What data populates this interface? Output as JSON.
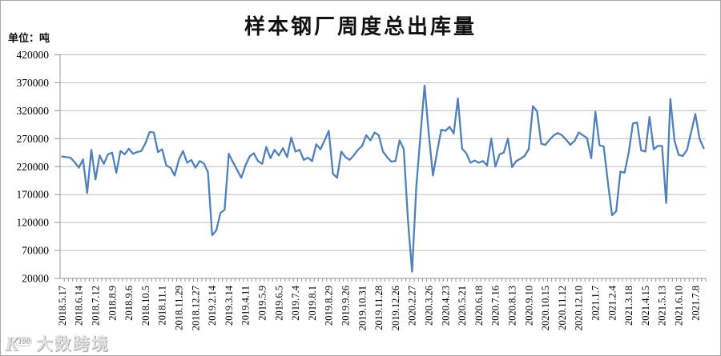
{
  "meta": {
    "title": "样本钢厂周度总出库量",
    "unit_label": "单位：吨"
  },
  "watermark": {
    "logo_main": "K",
    "logo_sup": "100",
    "text": "大数跨境"
  },
  "chart_data": {
    "type": "line",
    "title": "样本钢厂周度总出库量",
    "ylabel": "单位：吨",
    "xlabel": "",
    "grid": true,
    "legend": "none",
    "series_name": "周度总出库量",
    "series_color": "#4F81BD",
    "grid_color": "#bfbfbf",
    "axis_color": "#959595",
    "text_color": "#000000",
    "ylim": [
      20000,
      420000
    ],
    "ytick_step": 50000,
    "ytick_labels": [
      "20000",
      "70000",
      "120000",
      "170000",
      "220000",
      "270000",
      "320000",
      "370000",
      "420000"
    ],
    "label_every": 4,
    "x_tick_labels": [
      "2018.5.17",
      "2018.6.14",
      "2018.7.12",
      "2018.8.9",
      "2018.9.6",
      "2018.10.5",
      "2018.11.1",
      "2018.11.29",
      "2018.12.27",
      "2019.2.14",
      "2019.3.14",
      "2019.4.11",
      "2019.5.9",
      "2019.6.5",
      "2019.7.4",
      "2019.8.1",
      "2019.8.29",
      "2019.9.26",
      "2019.10.31",
      "2019.11.28",
      "2019.12.26",
      "2020.2.27",
      "2020.3.26",
      "2020.4.23",
      "2020.5.21",
      "2020.6.18",
      "2020.7.16",
      "2020.8.13",
      "2020.9.10",
      "2020.10.15",
      "2020.11.12",
      "2020.12.10",
      "2021.1.7",
      "2021.2.4",
      "2021.3.18",
      "2021.4.15",
      "2021.5.13",
      "2021.6.10",
      "2021.7.8"
    ],
    "values": [
      238000,
      237000,
      236000,
      228000,
      218000,
      233000,
      173000,
      250000,
      197000,
      240000,
      225000,
      242000,
      245000,
      209000,
      248000,
      242000,
      252000,
      243000,
      246000,
      248000,
      262000,
      282000,
      281000,
      246000,
      251000,
      222000,
      218000,
      204000,
      232000,
      248000,
      227000,
      232000,
      218000,
      230000,
      226000,
      210000,
      97000,
      106000,
      137000,
      143000,
      243000,
      228000,
      214000,
      200000,
      222000,
      238000,
      244000,
      230000,
      225000,
      255000,
      235000,
      250000,
      240000,
      253000,
      237000,
      272000,
      247000,
      250000,
      232000,
      236000,
      230000,
      260000,
      251000,
      267000,
      284000,
      207000,
      200000,
      247000,
      237000,
      232000,
      240000,
      250000,
      257000,
      276000,
      267000,
      281000,
      276000,
      247000,
      237000,
      229000,
      230000,
      267000,
      251000,
      125000,
      32000,
      183000,
      275000,
      365000,
      279000,
      204000,
      246000,
      286000,
      284000,
      291000,
      279000,
      342000,
      252000,
      244000,
      227000,
      231000,
      227000,
      230000,
      222000,
      270000,
      220000,
      242000,
      245000,
      270000,
      219000,
      230000,
      234000,
      239000,
      251000,
      328000,
      319000,
      261000,
      259000,
      268000,
      276000,
      280000,
      276000,
      268000,
      259000,
      266000,
      281000,
      276000,
      271000,
      235000,
      318000,
      258000,
      256000,
      192000,
      133000,
      140000,
      211000,
      209000,
      245000,
      297000,
      299000,
      249000,
      247000,
      309000,
      251000,
      257000,
      257000,
      155000,
      341000,
      266000,
      241000,
      239000,
      250000,
      282000,
      314000,
      270000,
      253000
    ]
  }
}
